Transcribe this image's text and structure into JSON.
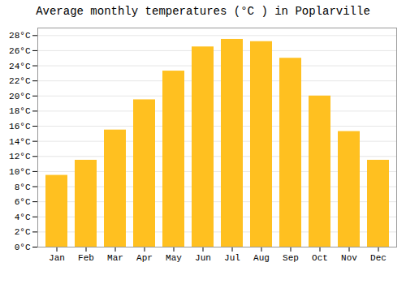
{
  "chart_data": {
    "type": "bar",
    "title": "Average monthly temperatures (°C ) in Poplarville",
    "categories": [
      "Jan",
      "Feb",
      "Mar",
      "Apr",
      "May",
      "Jun",
      "Jul",
      "Aug",
      "Sep",
      "Oct",
      "Nov",
      "Dec"
    ],
    "values": [
      9.5,
      11.5,
      15.5,
      19.5,
      23.3,
      26.5,
      27.5,
      27.2,
      25.0,
      20.0,
      15.3,
      11.5
    ],
    "color": "#FFC020",
    "ylim": [
      0,
      29
    ],
    "yticks": [
      {
        "value": 0,
        "label": "0°C"
      },
      {
        "value": 2,
        "label": "2°C"
      },
      {
        "value": 4,
        "label": "4°C"
      },
      {
        "value": 6,
        "label": "6°C"
      },
      {
        "value": 8,
        "label": "8°C"
      },
      {
        "value": 10,
        "label": "10°C"
      },
      {
        "value": 12,
        "label": "12°C"
      },
      {
        "value": 14,
        "label": "14°C"
      },
      {
        "value": 16,
        "label": "16°C"
      },
      {
        "value": 18,
        "label": "18°C"
      },
      {
        "value": 20,
        "label": "20°C"
      },
      {
        "value": 22,
        "label": "22°C"
      },
      {
        "value": 24,
        "label": "24°C"
      },
      {
        "value": 26,
        "label": "26°C"
      },
      {
        "value": 28,
        "label": "28°C"
      }
    ],
    "grid": true
  }
}
